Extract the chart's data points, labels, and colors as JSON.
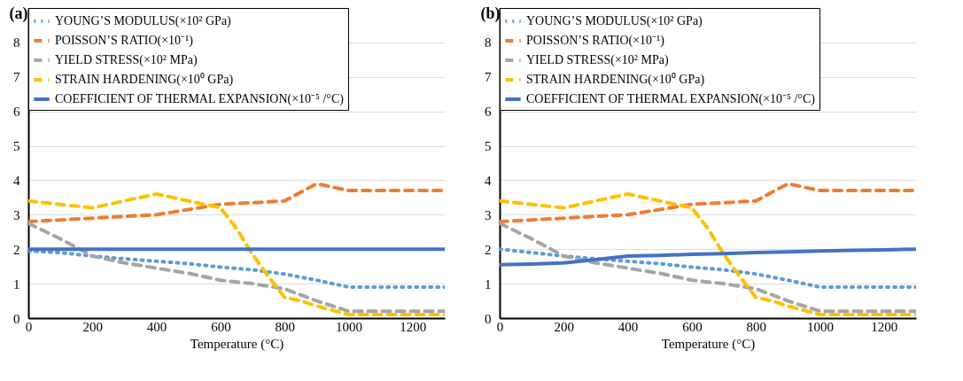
{
  "chart_data": [
    {
      "type": "line",
      "title": "(a)",
      "xlabel": "Temperature (°C)",
      "x": [
        0,
        100,
        200,
        300,
        400,
        500,
        600,
        700,
        800,
        900,
        1000,
        1100,
        1200,
        1300
      ],
      "xlim": [
        0,
        1300
      ],
      "xticks": [
        0,
        200,
        400,
        600,
        800,
        1000,
        1200
      ],
      "ylim": [
        0,
        9
      ],
      "yticks": [
        0,
        1,
        2,
        3,
        4,
        5,
        6,
        7,
        8
      ],
      "grid": "y",
      "legend": "top left",
      "series": [
        {
          "name": "YOUNG’S MODULUS(×10² GPa)",
          "color": "#5b9bd5",
          "line_style": "dotted",
          "values": [
            1.95,
            1.9,
            1.8,
            1.72,
            1.65,
            1.58,
            1.48,
            1.4,
            1.28,
            1.1,
            0.9,
            0.9,
            0.9,
            0.9
          ]
        },
        {
          "name": "POISSON’S RATIO(×10⁻¹)",
          "color": "#ed7d31",
          "line_style": "dashed",
          "values": [
            2.8,
            2.85,
            2.9,
            2.95,
            3.0,
            3.15,
            3.3,
            3.35,
            3.4,
            3.9,
            3.7,
            3.7,
            3.7,
            3.7
          ]
        },
        {
          "name": "YIELD STRESS(×10² MPa)",
          "color": "#a5a5a5",
          "line_style": "dashed",
          "values": [
            2.75,
            2.3,
            1.8,
            1.6,
            1.45,
            1.3,
            1.1,
            1.0,
            0.85,
            0.5,
            0.2,
            0.2,
            0.2,
            0.2
          ]
        },
        {
          "name": "STRAIN HARDENING(×10⁰ GPa)",
          "color": "#ffc000",
          "line_style": "dashed",
          "x": [
            0,
            100,
            200,
            300,
            400,
            500,
            600,
            650,
            700,
            750,
            800,
            850,
            900,
            1000,
            1100,
            1200,
            1300
          ],
          "values": [
            3.4,
            3.3,
            3.2,
            3.4,
            3.6,
            3.4,
            3.2,
            2.6,
            1.85,
            1.2,
            0.6,
            0.5,
            0.35,
            0.1,
            0.1,
            0.1,
            0.1
          ]
        },
        {
          "name": "COEFFICIENT OF THERMAL EXPANSION(×10⁻⁵ /°C)",
          "color": "#4472c4",
          "line_style": "solid",
          "values": [
            2,
            2,
            2,
            2,
            2,
            2,
            2,
            2,
            2,
            2,
            2,
            2,
            2,
            2
          ]
        }
      ]
    },
    {
      "type": "line",
      "title": "(b)",
      "xlabel": "Temperature (°C)",
      "x": [
        0,
        100,
        200,
        300,
        400,
        500,
        600,
        700,
        800,
        900,
        1000,
        1100,
        1200,
        1300
      ],
      "xlim": [
        0,
        1300
      ],
      "xticks": [
        0,
        200,
        400,
        600,
        800,
        1000,
        1200
      ],
      "ylim": [
        0,
        9
      ],
      "yticks": [
        0,
        1,
        2,
        3,
        4,
        5,
        6,
        7,
        8
      ],
      "grid": "y",
      "legend": "top left",
      "series": [
        {
          "name": "YOUNG’S MODULUS(×10² GPa)",
          "color": "#5b9bd5",
          "line_style": "dotted",
          "values": [
            2.0,
            1.9,
            1.8,
            1.72,
            1.65,
            1.58,
            1.48,
            1.4,
            1.28,
            1.1,
            0.9,
            0.9,
            0.9,
            0.9
          ]
        },
        {
          "name": "POISSON’S RATIO(×10⁻¹)",
          "color": "#ed7d31",
          "line_style": "dashed",
          "values": [
            2.8,
            2.85,
            2.9,
            2.95,
            3.0,
            3.15,
            3.3,
            3.35,
            3.4,
            3.9,
            3.7,
            3.7,
            3.7,
            3.7
          ]
        },
        {
          "name": "YIELD STRESS(×10² MPa)",
          "color": "#a5a5a5",
          "line_style": "dashed",
          "values": [
            2.75,
            2.3,
            1.8,
            1.6,
            1.45,
            1.3,
            1.1,
            1.0,
            0.85,
            0.5,
            0.2,
            0.2,
            0.2,
            0.2
          ]
        },
        {
          "name": "STRAIN HARDENING(×10⁰ GPa)",
          "color": "#ffc000",
          "line_style": "dashed",
          "x": [
            0,
            100,
            200,
            300,
            400,
            500,
            600,
            650,
            700,
            750,
            800,
            850,
            900,
            1000,
            1100,
            1200,
            1300
          ],
          "values": [
            3.4,
            3.3,
            3.2,
            3.4,
            3.6,
            3.4,
            3.2,
            2.6,
            1.85,
            1.2,
            0.6,
            0.5,
            0.35,
            0.1,
            0.1,
            0.1,
            0.1
          ]
        },
        {
          "name": "COEFFICIENT OF THERMAL EXPANSION(×10⁻⁵ /°C)",
          "color": "#4472c4",
          "line_style": "solid",
          "values": [
            1.55,
            1.57,
            1.6,
            1.7,
            1.8,
            1.82,
            1.85,
            1.87,
            1.9,
            1.92,
            1.95,
            1.97,
            1.98,
            2.0
          ]
        }
      ]
    }
  ]
}
